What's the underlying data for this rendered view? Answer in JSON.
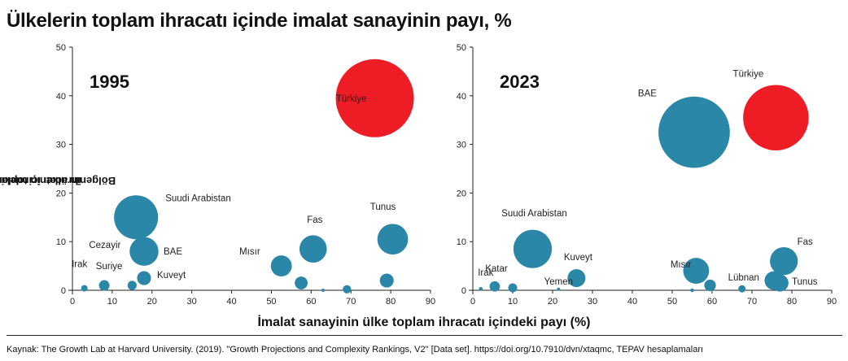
{
  "title": "Ülkelerin toplam ihracatı içinde imalat sanayinin payı, %",
  "xlabel": "İmalat sanayinin ülke toplam ihracatı içindeki payı (%)",
  "ylabel_line1": "Bölgenin ülkenin toplam imalat sanayi",
  "ylabel_line2": "ihracatı içindeki payı (%)",
  "source": "Kaynak: The Growth Lab at Harvard University. (2019). \"Growth Projections and Complexity Rankings, V2\" [Data set]. https://doi.org/10.7910/dvn/xtaqmc, TEPAV hesaplamaları",
  "colors": {
    "bubble": "#2b87a8",
    "highlight": "#ee1c25",
    "axis": "#222222"
  },
  "chart_data": [
    {
      "type": "scatter",
      "title": "1995",
      "xlim": [
        0,
        90
      ],
      "ylim": [
        0,
        50
      ],
      "xticks": [
        "0",
        "10",
        "20",
        "30",
        "40",
        "50",
        "60",
        "70",
        "80",
        "90"
      ],
      "yticks": [
        "0",
        "10",
        "20",
        "30",
        "40",
        "50"
      ],
      "points": [
        {
          "label": "Türkiye",
          "x": 76,
          "y": 39.5,
          "r": 22,
          "color": "highlight"
        },
        {
          "label": "Suudi Arabistan",
          "x": 16,
          "y": 15,
          "r": 7
        },
        {
          "label": "BAE",
          "x": 18,
          "y": 8,
          "r": 3
        },
        {
          "label": "Cezayir",
          "x": 15,
          "y": 1,
          "r": 0.3
        },
        {
          "label": "Irak",
          "x": 3,
          "y": 0.4,
          "r": 0.15
        },
        {
          "label": "Suriye",
          "x": 8,
          "y": 1,
          "r": 0.4
        },
        {
          "label": "Kuveyt",
          "x": 18,
          "y": 2.5,
          "r": 0.7
        },
        {
          "label": "Mısır",
          "x": 52.5,
          "y": 5,
          "r": 1.6
        },
        {
          "label": "Fas",
          "x": 60.5,
          "y": 8.5,
          "r": 2.7
        },
        {
          "label": "Tunus",
          "x": 80.5,
          "y": 10.5,
          "r": 3.4
        },
        {
          "label": "",
          "x": 57.5,
          "y": 1.5,
          "r": 0.6
        },
        {
          "label": "",
          "x": 79,
          "y": 2,
          "r": 0.7
        },
        {
          "label": "",
          "x": 69,
          "y": 0.2,
          "r": 0.25
        },
        {
          "label": "",
          "x": 63,
          "y": 0,
          "r": 0.02
        }
      ]
    },
    {
      "type": "scatter",
      "title": "2023",
      "xlim": [
        0,
        90
      ],
      "ylim": [
        0,
        50
      ],
      "xticks": [
        "0",
        "10",
        "20",
        "30",
        "40",
        "50",
        "60",
        "70",
        "80",
        "90"
      ],
      "yticks": [
        "0",
        "10",
        "20",
        "30",
        "40",
        "50"
      ],
      "points": [
        {
          "label": "Türkiye",
          "x": 76,
          "y": 35.5,
          "r": 16,
          "color": "highlight"
        },
        {
          "label": "BAE",
          "x": 55.5,
          "y": 32.5,
          "r": 19
        },
        {
          "label": "Suudi Arabistan",
          "x": 15,
          "y": 8.5,
          "r": 5.5
        },
        {
          "label": "Irak",
          "x": 2,
          "y": 0.3,
          "r": 0.05
        },
        {
          "label": "Katar",
          "x": 5.5,
          "y": 0.8,
          "r": 0.4
        },
        {
          "label": "Yemen",
          "x": 21.5,
          "y": 0.2,
          "r": 0.03
        },
        {
          "label": "Kuveyt",
          "x": 26,
          "y": 2.5,
          "r": 1.2
        },
        {
          "label": "Mısır",
          "x": 56,
          "y": 4,
          "r": 2.5
        },
        {
          "label": "Lübnan",
          "x": 67.5,
          "y": 0.3,
          "r": 0.2
        },
        {
          "label": "Fas",
          "x": 78,
          "y": 6,
          "r": 2.9
        },
        {
          "label": "Tunus",
          "x": 75.5,
          "y": 2,
          "r": 1.3
        },
        {
          "label": "",
          "x": 10,
          "y": 0.5,
          "r": 0.3
        },
        {
          "label": "",
          "x": 59.5,
          "y": 1,
          "r": 0.5
        },
        {
          "label": "",
          "x": 55,
          "y": 0,
          "r": 0.05
        },
        {
          "label": "",
          "x": 77,
          "y": 1.5,
          "r": 1.1
        }
      ]
    }
  ]
}
